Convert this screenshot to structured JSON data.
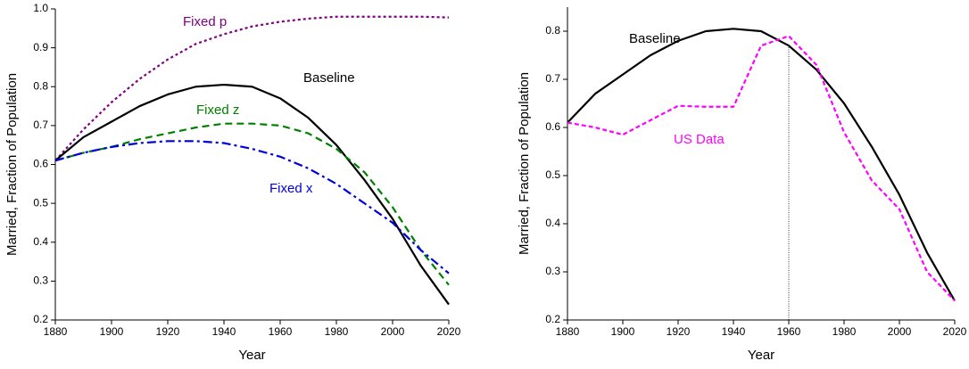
{
  "chart_data": [
    {
      "type": "line",
      "x": [
        1880,
        1890,
        1900,
        1910,
        1920,
        1930,
        1940,
        1950,
        1960,
        1970,
        1980,
        1990,
        2000,
        2010,
        2020
      ],
      "series": [
        {
          "name": "Fixed p",
          "color": "#800080",
          "values": [
            0.61,
            0.69,
            0.76,
            0.82,
            0.87,
            0.91,
            0.935,
            0.955,
            0.967,
            0.975,
            0.98,
            0.98,
            0.98,
            0.98,
            0.978
          ]
        },
        {
          "name": "Baseline",
          "color": "#000000",
          "values": [
            0.61,
            0.67,
            0.71,
            0.75,
            0.78,
            0.8,
            0.805,
            0.8,
            0.77,
            0.72,
            0.65,
            0.56,
            0.46,
            0.34,
            0.24
          ]
        },
        {
          "name": "Fixed z",
          "color": "#008000",
          "values": [
            0.61,
            0.63,
            0.645,
            0.665,
            0.68,
            0.695,
            0.705,
            0.705,
            0.7,
            0.68,
            0.64,
            0.58,
            0.49,
            0.38,
            0.29
          ]
        },
        {
          "name": "Fixed x",
          "color": "#0000dd",
          "values": [
            0.61,
            0.63,
            0.645,
            0.655,
            0.66,
            0.66,
            0.655,
            0.64,
            0.62,
            0.59,
            0.55,
            0.5,
            0.45,
            0.38,
            0.32
          ]
        }
      ],
      "x_label": "Year",
      "y_label": "Married, Fraction of Population",
      "xlim": [
        1880,
        2020
      ],
      "xticks": [
        1880,
        1900,
        1920,
        1940,
        1960,
        1980,
        2000,
        2020
      ],
      "ylim": [
        0.2,
        1.0
      ],
      "yticks": [
        0.2,
        0.3,
        0.4,
        0.5,
        0.6,
        0.7,
        0.8,
        0.9,
        {
          "value": 1.0,
          "label": "1.0"
        }
      ]
    },
    {
      "type": "line",
      "x": [
        1880,
        1890,
        1900,
        1910,
        1920,
        1930,
        1940,
        1950,
        1960,
        1970,
        1980,
        1990,
        2000,
        2010,
        2020
      ],
      "series": [
        {
          "name": "Baseline",
          "color": "#000000",
          "values": [
            0.61,
            0.67,
            0.71,
            0.75,
            0.78,
            0.8,
            0.805,
            0.8,
            0.77,
            0.72,
            0.65,
            0.56,
            0.46,
            0.34,
            0.24
          ]
        },
        {
          "name": "US Data",
          "color": "#ff00ff",
          "values": [
            0.61,
            0.6,
            0.585,
            0.615,
            0.645,
            0.643,
            0.643,
            0.77,
            0.79,
            0.73,
            0.59,
            0.49,
            0.43,
            0.3,
            0.24
          ]
        }
      ],
      "vline": 1960,
      "x_label": "Year",
      "y_label": "Married, Fraction of Population",
      "xlim": [
        1880,
        2020
      ],
      "xticks": [
        1880,
        1900,
        1920,
        1940,
        1960,
        1980,
        2000,
        2020
      ],
      "ylim": [
        0.2,
        0.85
      ],
      "yticks": [
        0.2,
        0.3,
        0.4,
        0.5,
        0.6,
        0.7,
        0.8
      ]
    }
  ]
}
